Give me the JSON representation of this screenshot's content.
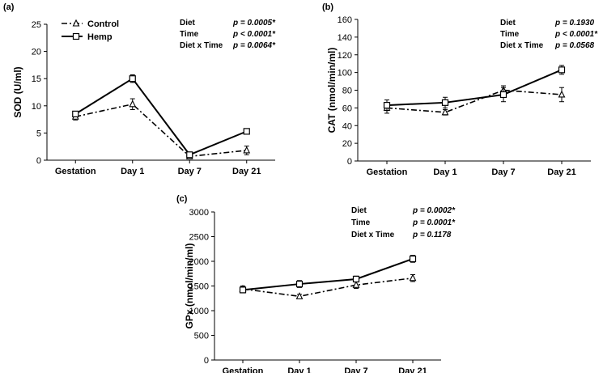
{
  "chart_data": [
    {
      "type": "line",
      "panel_label": "(a)",
      "ylabel": "SOD (U/ml)",
      "xlabel": "",
      "categories": [
        "Gestation",
        "Day 1",
        "Day 7",
        "Day 21"
      ],
      "ylim": [
        0,
        25
      ],
      "yticks": [
        0,
        5,
        10,
        15,
        20,
        25
      ],
      "series": [
        {
          "name": "Control",
          "values": [
            8.0,
            10.3,
            0.7,
            1.8
          ],
          "errors": [
            0.6,
            1.0,
            0.3,
            0.8
          ],
          "color": "#000000",
          "marker": "triangle",
          "dash": "dash-dot"
        },
        {
          "name": "Hemp",
          "values": [
            8.5,
            15.0,
            1.0,
            5.3
          ],
          "errors": [
            0.5,
            0.7,
            0.3,
            0.4
          ],
          "color": "#000000",
          "marker": "square",
          "dash": "solid"
        }
      ],
      "legend": "top-left",
      "stats": [
        {
          "label": "Diet",
          "p": "p = 0.0005*"
        },
        {
          "label": "Time",
          "p": "p < 0.0001*"
        },
        {
          "label": "Diet x Time",
          "p": "p = 0.0064*"
        }
      ]
    },
    {
      "type": "line",
      "panel_label": "(b)",
      "ylabel": "CAT (nmol/min/ml)",
      "xlabel": "",
      "categories": [
        "Gestation",
        "Day 1",
        "Day 7",
        "Day 21"
      ],
      "ylim": [
        0,
        160
      ],
      "yticks": [
        0,
        20,
        40,
        60,
        80,
        100,
        120,
        140,
        160
      ],
      "series": [
        {
          "name": "Control",
          "values": [
            60,
            55,
            80,
            75
          ],
          "errors": [
            6,
            3,
            5,
            8
          ],
          "color": "#000000",
          "marker": "triangle",
          "dash": "dash-dot"
        },
        {
          "name": "Hemp",
          "values": [
            63,
            66,
            75,
            103
          ],
          "errors": [
            6,
            6,
            8,
            5
          ],
          "color": "#000000",
          "marker": "square",
          "dash": "solid"
        }
      ],
      "stats": [
        {
          "label": "Diet",
          "p": "p = 0.1930"
        },
        {
          "label": "Time",
          "p": "p < 0.0001*"
        },
        {
          "label": "Diet x Time",
          "p": "p = 0.0568"
        }
      ]
    },
    {
      "type": "line",
      "panel_label": "(c)",
      "ylabel": "GPx (nmol/min/ml)",
      "xlabel": "",
      "categories": [
        "Gestation",
        "Day 1",
        "Day 7",
        "Day 21"
      ],
      "ylim": [
        0,
        3000
      ],
      "yticks": [
        0,
        500,
        1000,
        1500,
        2000,
        2500,
        3000
      ],
      "series": [
        {
          "name": "Control",
          "values": [
            1440,
            1290,
            1520,
            1660
          ],
          "errors": [
            60,
            40,
            70,
            70
          ],
          "color": "#000000",
          "marker": "triangle",
          "dash": "dash-dot"
        },
        {
          "name": "Hemp",
          "values": [
            1420,
            1540,
            1640,
            2050
          ],
          "errors": [
            60,
            70,
            60,
            70
          ],
          "color": "#000000",
          "marker": "square",
          "dash": "solid"
        }
      ],
      "stats": [
        {
          "label": "Diet",
          "p": "p = 0.0002*"
        },
        {
          "label": "Time",
          "p": "p = 0.0001*"
        },
        {
          "label": "Diet x Time",
          "p": "p = 0.1178"
        }
      ]
    }
  ]
}
